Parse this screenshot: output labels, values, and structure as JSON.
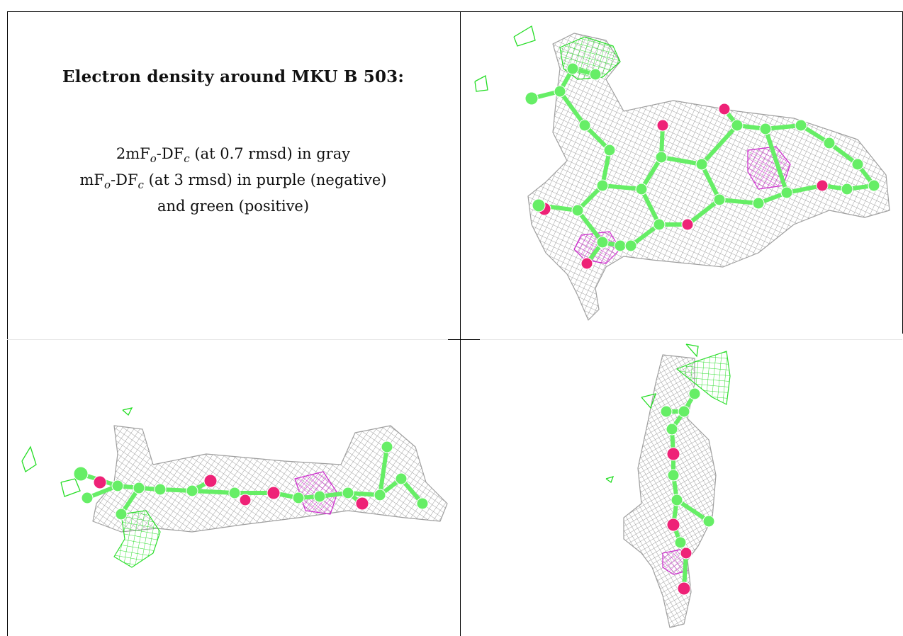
{
  "caption": {
    "title": "Electron density around MKU B 503:",
    "line1": {
      "prefix": "2mF",
      "sub_o": "o",
      "mid": "-DF",
      "sub_c": "c",
      "suffix": " (at 0.7 rmsd) in gray"
    },
    "line2": {
      "prefix": "mF",
      "sub_o": "o",
      "mid": "-DF",
      "sub_c": "c",
      "suffix": " (at 3 rmsd) in purple (negative)"
    },
    "line3": "and green (positive)"
  },
  "colors": {
    "mesh_gray": "#9a9a9a",
    "mesh_green": "#22dd22",
    "mesh_purple": "#cc22cc",
    "carbon": "#66ee66",
    "oxygen": "#ee2277",
    "border": "#000000"
  },
  "panels": [
    {
      "id": "view-top-right",
      "view": "face-on"
    },
    {
      "id": "view-bottom-left",
      "view": "edge-on"
    },
    {
      "id": "view-bottom-right",
      "view": "end-on"
    }
  ]
}
